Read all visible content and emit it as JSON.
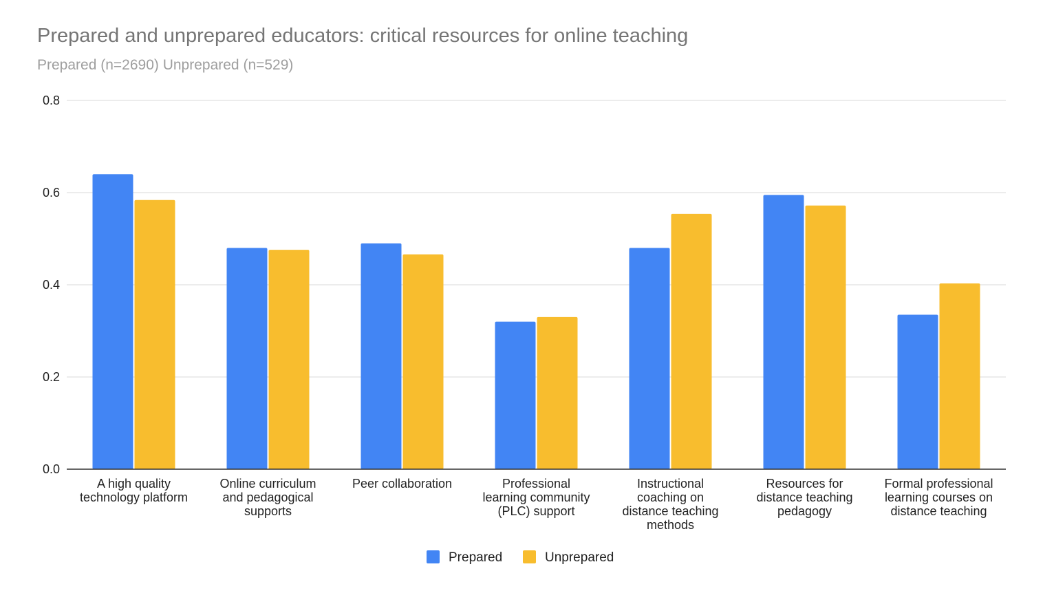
{
  "chart_data": {
    "type": "bar",
    "title": "Prepared and unprepared educators: critical resources for online teaching",
    "subtitle": "Prepared (n=2690) Unprepared (n=529)",
    "xlabel": "",
    "ylabel": "",
    "ylim": [
      0,
      0.8
    ],
    "yticks": [
      "0.0",
      "0.2",
      "0.4",
      "0.6",
      "0.8"
    ],
    "grid": true,
    "legend": "bottom",
    "categories": [
      [
        "A high quality",
        "technology platform"
      ],
      [
        "Online curriculum",
        "and pedagogical",
        "supports"
      ],
      [
        "Peer collaboration"
      ],
      [
        "Professional",
        "learning community",
        "(PLC) support"
      ],
      [
        "Instructional",
        "coaching on",
        "distance teaching",
        "methods"
      ],
      [
        "Resources for",
        "distance teaching",
        "pedagogy"
      ],
      [
        "Formal professional",
        "learning courses on",
        "distance teaching"
      ]
    ],
    "series": [
      {
        "name": "Prepared",
        "color": "#4285F4",
        "values": [
          0.64,
          0.48,
          0.49,
          0.32,
          0.48,
          0.595,
          0.335
        ]
      },
      {
        "name": "Unprepared",
        "color": "#F8BD2E",
        "values": [
          0.584,
          0.476,
          0.466,
          0.33,
          0.554,
          0.572,
          0.403
        ]
      }
    ]
  }
}
